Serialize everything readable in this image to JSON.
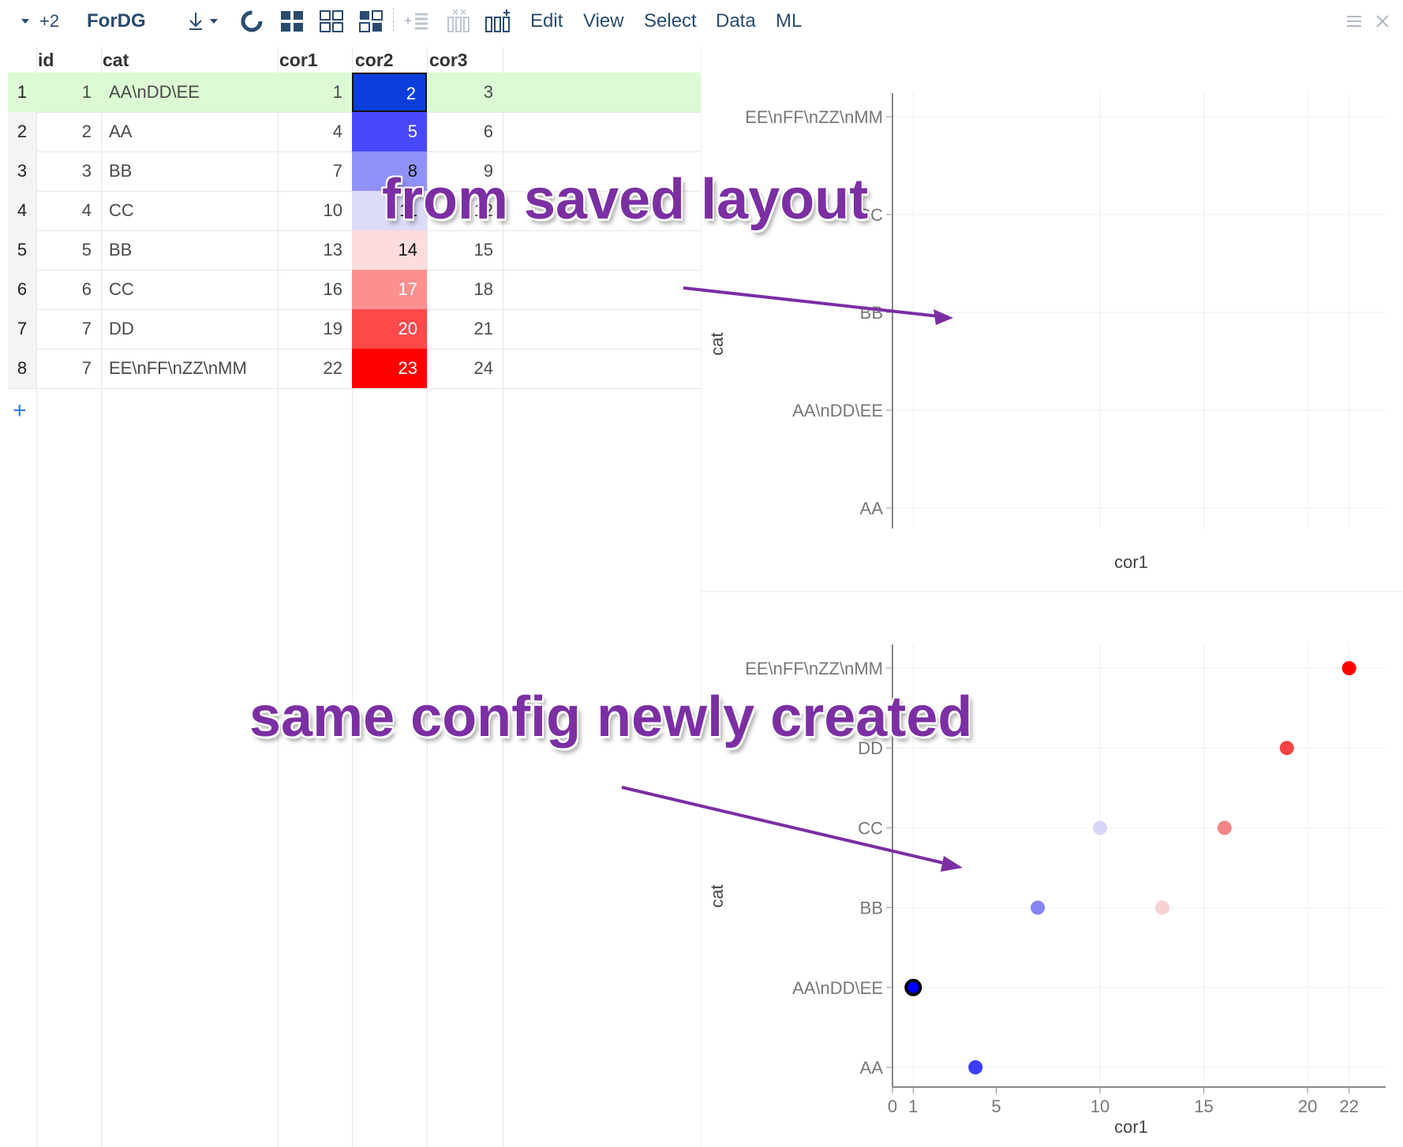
{
  "toolbar": {
    "layout_count": "+2",
    "title": "ForDG",
    "menu": [
      "Edit",
      "View",
      "Select",
      "Data",
      "ML"
    ]
  },
  "grid": {
    "columns": [
      "id",
      "cat",
      "cor1",
      "cor2",
      "cor3"
    ],
    "rows": [
      {
        "n": "1",
        "id": "1",
        "cat": "AA\\nDD\\EE",
        "cor1": "1",
        "cor2": "2",
        "cor3": "3",
        "cor2_color": "#0a3fdb"
      },
      {
        "n": "2",
        "id": "2",
        "cat": "AA",
        "cor1": "4",
        "cor2": "5",
        "cor3": "6",
        "cor2_color": "#4848fb"
      },
      {
        "n": "3",
        "id": "3",
        "cat": "BB",
        "cor1": "7",
        "cor2": "8",
        "cor3": "9",
        "cor2_color": "#9191fa"
      },
      {
        "n": "4",
        "id": "4",
        "cat": "CC",
        "cor1": "10",
        "cor2": "11",
        "cor3": "12",
        "cor2_color": "#dcdcfa"
      },
      {
        "n": "5",
        "id": "5",
        "cat": "BB",
        "cor1": "13",
        "cor2": "14",
        "cor3": "15",
        "cor2_color": "#fcdcdc"
      },
      {
        "n": "6",
        "id": "6",
        "cat": "CC",
        "cor1": "16",
        "cor2": "17",
        "cor3": "18",
        "cor2_color": "#fc9090"
      },
      {
        "n": "7",
        "id": "7",
        "cat": "DD",
        "cor1": "19",
        "cor2": "20",
        "cor3": "21",
        "cor2_color": "#fd4949"
      },
      {
        "n": "8",
        "id": "7",
        "cat": "EE\\nFF\\nZZ\\nMM",
        "cor1": "22",
        "cor2": "23",
        "cor3": "24",
        "cor2_color": "#fe0000"
      }
    ],
    "selected_row_color": "#dcfbd4",
    "add_row_label": "+"
  },
  "annotations": {
    "top": "from saved layout",
    "bottom": "same config newly created",
    "color": "#7b2fa3"
  },
  "chart_data": [
    {
      "type": "scatter",
      "title": "",
      "xlabel": "cor1",
      "ylabel": "cat",
      "categories": [
        "AA",
        "AA\\nDD\\EE",
        "BB",
        "CC",
        "EE\\nFF\\nZZ\\nMM"
      ],
      "points": [],
      "xticks": [],
      "grid": true
    },
    {
      "type": "scatter",
      "title": "",
      "xlabel": "cor1",
      "ylabel": "cat",
      "categories": [
        "AA",
        "AA\\nDD\\EE",
        "BB",
        "CC",
        "DD",
        "EE\\nFF\\nZZ\\nMM"
      ],
      "xlim": [
        0,
        23
      ],
      "xticks": [
        "0",
        "1",
        "5",
        "10",
        "15",
        "20",
        "22"
      ],
      "points": [
        {
          "x": 1,
          "y": "AA\\nDD\\EE",
          "color": "#0000ff",
          "selected": true
        },
        {
          "x": 4,
          "y": "AA",
          "color": "#3d3df5"
        },
        {
          "x": 7,
          "y": "BB",
          "color": "#8585f2"
        },
        {
          "x": 10,
          "y": "CC",
          "color": "#d6d6f8"
        },
        {
          "x": 13,
          "y": "BB",
          "color": "#f7d2d2"
        },
        {
          "x": 16,
          "y": "CC",
          "color": "#f38484"
        },
        {
          "x": 19,
          "y": "DD",
          "color": "#f54343"
        },
        {
          "x": 22,
          "y": "EE\\nFF\\nZZ\\nMM",
          "color": "#ff0000"
        }
      ],
      "grid": true
    }
  ]
}
